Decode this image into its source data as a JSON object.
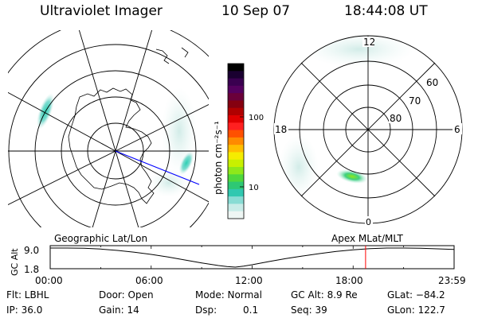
{
  "header": {
    "instrument": "Ultraviolet Imager",
    "date": "10 Sep 07",
    "time": "18:44:08 UT"
  },
  "colors": {
    "background": "#ffffff",
    "foreground": "#000000",
    "track": "#0000ff",
    "marker": "#ff0000"
  },
  "colorbar": {
    "label": "photon cm⁻²s⁻¹",
    "ticks": [
      "100",
      "10"
    ],
    "colors": [
      "#000000",
      "#1a0030",
      "#3a0050",
      "#55005f",
      "#6a003a",
      "#850010",
      "#b00000",
      "#e00000",
      "#ff2020",
      "#ff5000",
      "#ff8a00",
      "#ffbe00",
      "#f5ec00",
      "#c8f000",
      "#8ee81a",
      "#4fd83c",
      "#2ec874",
      "#30c8b0",
      "#88dcd4",
      "#c8ece8",
      "#eef6f4"
    ]
  },
  "geographic_panel": {
    "label": "Geographic Lat/Lon"
  },
  "apex_panel": {
    "label": "Apex MLat/MLT",
    "mlt_labels": {
      "top": "12",
      "bottom": "0",
      "left": "18",
      "right": "6"
    },
    "lat_labels": [
      "60",
      "70",
      "80"
    ]
  },
  "chart_data": {
    "type": "line",
    "title": "",
    "ylabel": "GC Alt",
    "y_ticks": [
      "9.0",
      "1.8"
    ],
    "ylim": [
      1.8,
      9.0
    ],
    "x_tick_labels": [
      "00:00",
      "06:00",
      "12:00",
      "18:00",
      "23:59"
    ],
    "xlim_hours": [
      0,
      24
    ],
    "series": [
      {
        "x_hours": [
          0,
          1,
          2,
          3,
          4,
          5,
          6,
          7,
          8,
          9,
          10,
          10.5,
          11,
          11.5,
          12,
          13,
          14,
          15,
          16,
          17,
          18,
          19,
          20,
          21,
          22,
          23,
          24
        ],
        "y_re": [
          9.0,
          9.0,
          8.9,
          8.6,
          8.1,
          7.4,
          6.6,
          5.6,
          4.5,
          3.4,
          2.4,
          2.0,
          1.8,
          2.2,
          2.7,
          3.9,
          5.0,
          6.0,
          6.9,
          7.7,
          8.3,
          8.8,
          9.0,
          9.0,
          8.9,
          8.7,
          8.5
        ]
      }
    ],
    "current_time_hours": 18.74
  },
  "status": {
    "filter": "Flt: LBHL",
    "ip": "IP: 36.0",
    "door": "Door: Open",
    "gain": "Gain: 14",
    "mode": "Mode: Normal",
    "dsp": "Dsp:",
    "dsp_value": "0.1",
    "gc_alt": "GC Alt: 8.9 Re",
    "seq": "Seq: 39",
    "glat": "GLat: −84.2",
    "glon": "GLon: 122.7"
  }
}
